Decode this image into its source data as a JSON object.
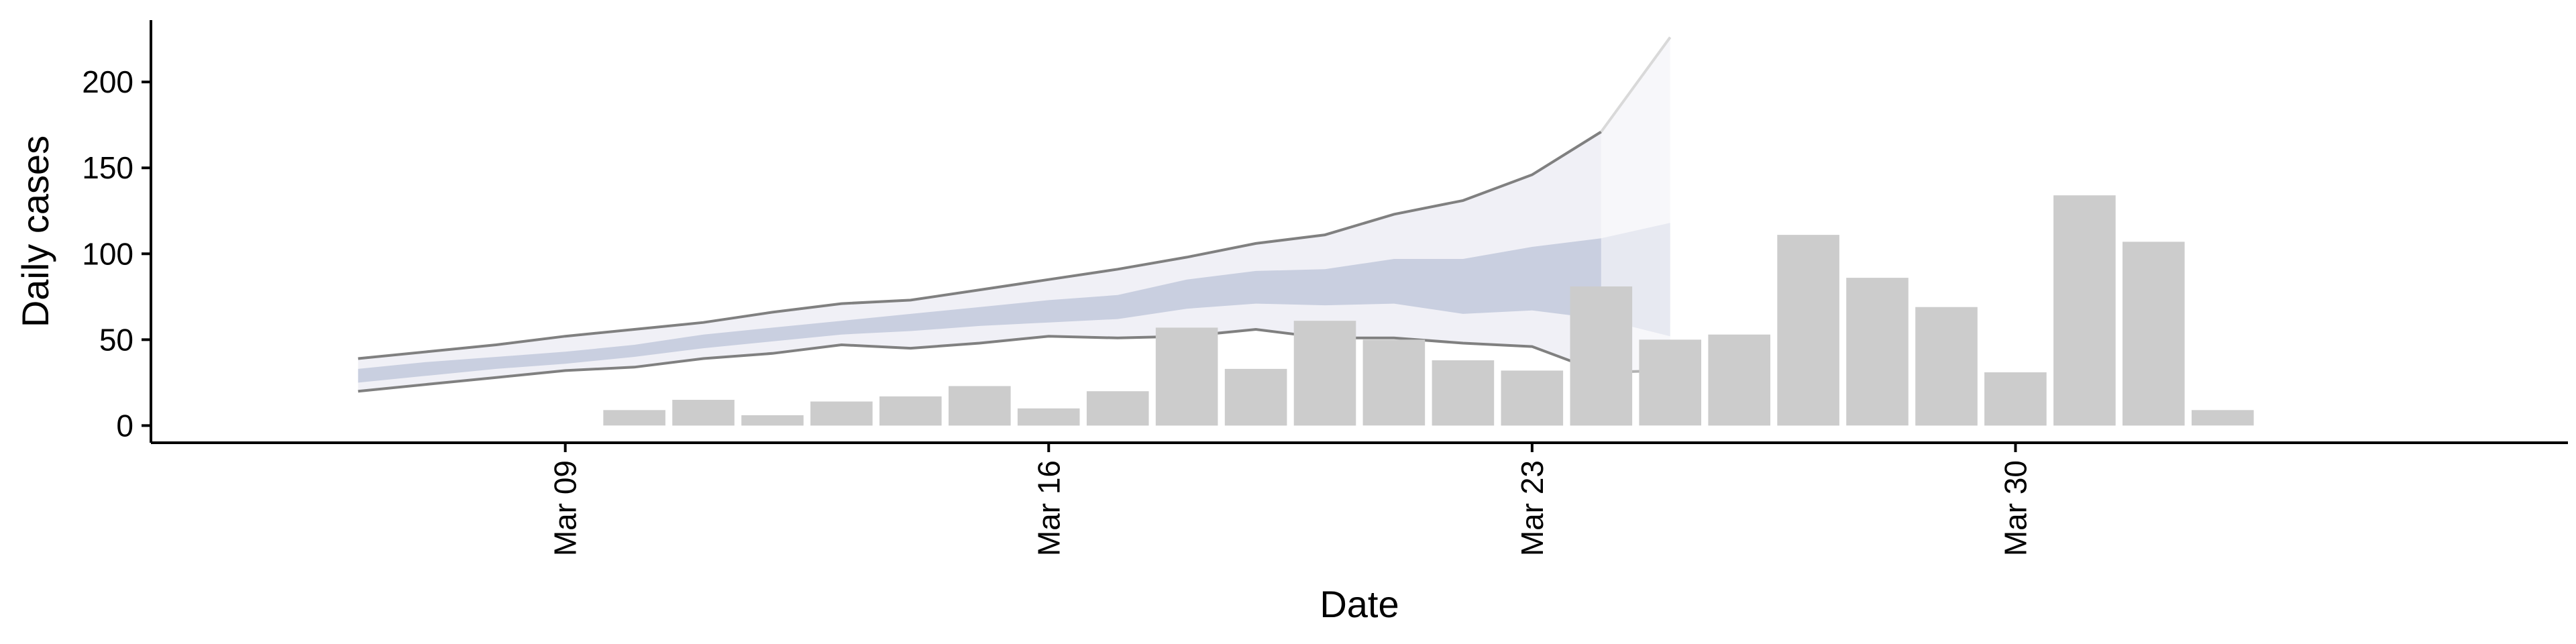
{
  "chart_data": {
    "type": "bar",
    "title": "",
    "xlabel": "Date",
    "ylabel": "Daily cases",
    "ylim": [
      -10,
      236
    ],
    "xlim": [
      "2020-03-03",
      "2020-04-07"
    ],
    "grid": false,
    "y_ticks": [
      0,
      50,
      100,
      150,
      200
    ],
    "x_ticks": [
      {
        "date": "2020-03-09",
        "label": "Mar 09"
      },
      {
        "date": "2020-03-16",
        "label": "Mar 16"
      },
      {
        "date": "2020-03-23",
        "label": "Mar 23"
      },
      {
        "date": "2020-03-30",
        "label": "Mar 30"
      }
    ],
    "bars": {
      "color": "#cccccc",
      "x": [
        "2020-03-10",
        "2020-03-11",
        "2020-03-12",
        "2020-03-13",
        "2020-03-14",
        "2020-03-15",
        "2020-03-16",
        "2020-03-17",
        "2020-03-18",
        "2020-03-19",
        "2020-03-20",
        "2020-03-21",
        "2020-03-22",
        "2020-03-23",
        "2020-03-24",
        "2020-03-25",
        "2020-03-26",
        "2020-03-27",
        "2020-03-28",
        "2020-03-29",
        "2020-03-30",
        "2020-03-31",
        "2020-04-01",
        "2020-04-02"
      ],
      "values": [
        9,
        15,
        6,
        14,
        17,
        23,
        10,
        20,
        57,
        33,
        61,
        50,
        38,
        32,
        81,
        50,
        53,
        111,
        86,
        69,
        31,
        134,
        107,
        9
      ]
    },
    "forecast": {
      "x": [
        "2020-03-06",
        "2020-03-07",
        "2020-03-08",
        "2020-03-09",
        "2020-03-10",
        "2020-03-11",
        "2020-03-12",
        "2020-03-13",
        "2020-03-14",
        "2020-03-15",
        "2020-03-16",
        "2020-03-17",
        "2020-03-18",
        "2020-03-19",
        "2020-03-20",
        "2020-03-21",
        "2020-03-22",
        "2020-03-23",
        "2020-03-24"
      ],
      "outer_lower": [
        20,
        24,
        28,
        32,
        34,
        39,
        42,
        47,
        45,
        48,
        52,
        51,
        52,
        56,
        51,
        51,
        48,
        46,
        31
      ],
      "outer_upper": [
        39,
        43,
        47,
        52,
        56,
        60,
        66,
        71,
        73,
        79,
        85,
        91,
        98,
        106,
        111,
        123,
        131,
        146,
        171
      ],
      "inner_lower": [
        25,
        29,
        33,
        36,
        40,
        45,
        49,
        53,
        55,
        58,
        60,
        62,
        68,
        71,
        70,
        71,
        65,
        67,
        62
      ],
      "inner_upper": [
        33,
        37,
        40,
        43,
        47,
        53,
        57,
        61,
        65,
        69,
        73,
        76,
        85,
        90,
        91,
        97,
        97,
        104,
        109
      ],
      "median_edge_color": "#808080",
      "outer_fill": "#f0f0f6",
      "inner_fill": "#c9cfe0"
    },
    "forecast_extension": {
      "x": [
        "2020-03-24",
        "2020-03-25"
      ],
      "outer_lower": [
        31,
        32
      ],
      "outer_upper": [
        171,
        226
      ],
      "inner_lower": [
        62,
        52
      ],
      "inner_upper": [
        109,
        118
      ]
    }
  }
}
